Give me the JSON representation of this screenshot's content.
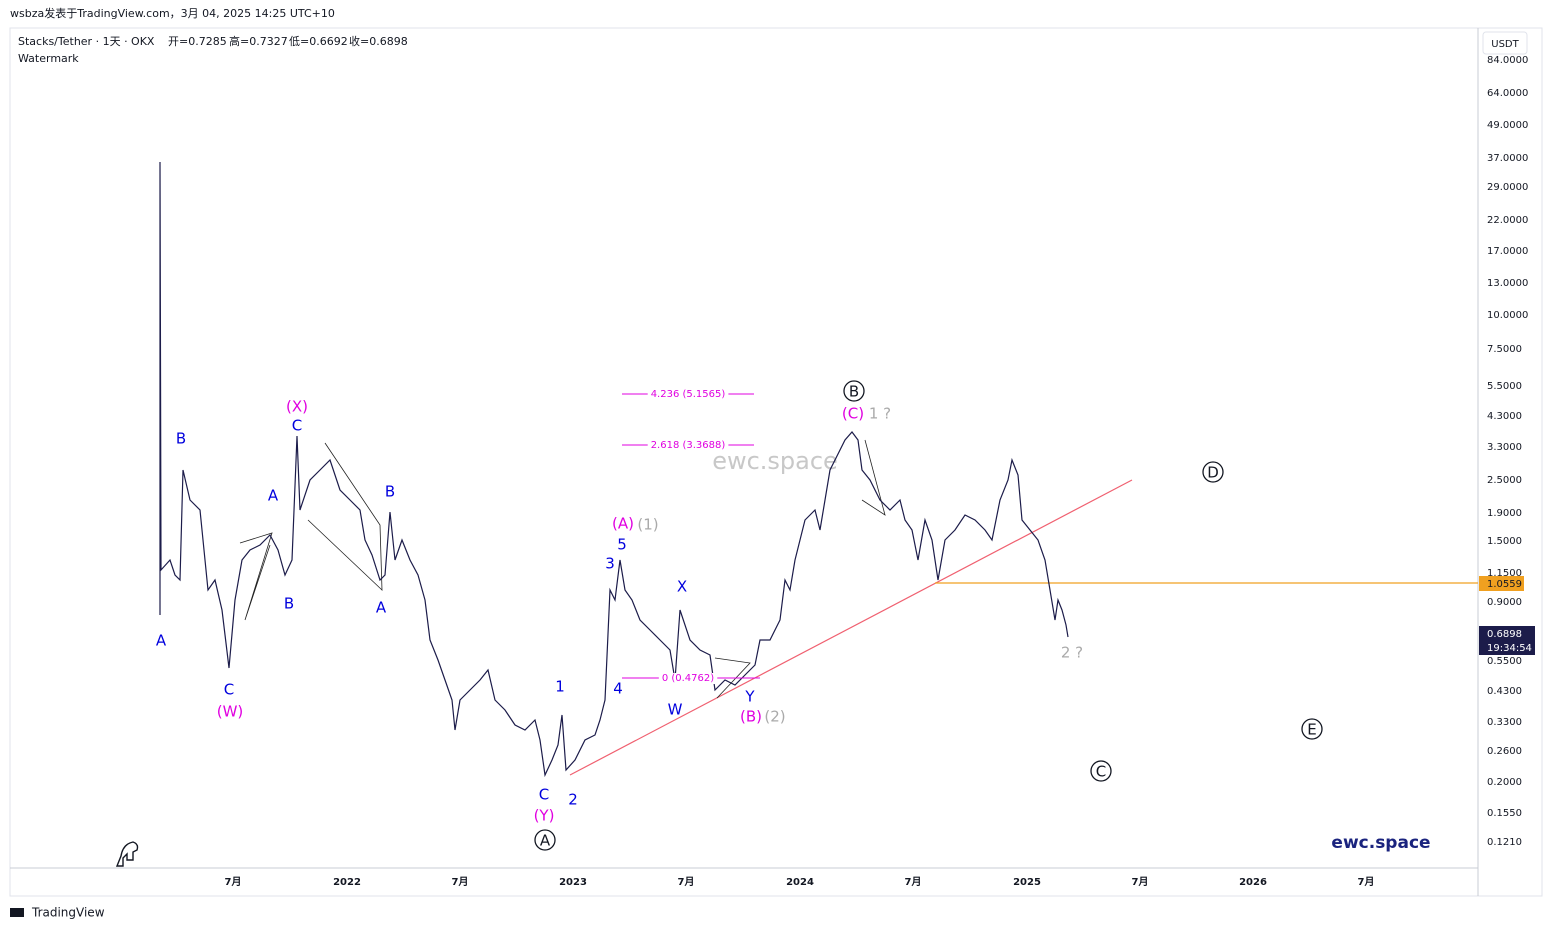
{
  "header": {
    "attribution": "wsbza发表于TradingView.com，3月 04, 2025 14:25 UTC+10",
    "symbol": "Stacks/Tether · 1天 · OKX",
    "ohlc": [
      "开=0.7285",
      "高=0.7327",
      "低=0.6692",
      "收=0.6898"
    ],
    "indicator": "Watermark"
  },
  "price_axis": {
    "currency": "USDT",
    "labels": [
      "84.0000",
      "64.0000",
      "49.0000",
      "37.0000",
      "29.0000",
      "22.0000",
      "17.0000",
      "13.0000",
      "10.0000",
      "7.5000",
      "5.5000",
      "4.3000",
      "3.3000",
      "2.5000",
      "1.9000",
      "1.5000",
      "1.1500",
      "0.9000",
      "0.5500",
      "0.4300",
      "0.3300",
      "0.2600",
      "0.2000",
      "0.1550",
      "0.1210"
    ],
    "level_label": "1.0559",
    "last_price": "0.6898",
    "countdown": "19:34:54"
  },
  "time_axis": [
    "7月",
    "2022",
    "7月",
    "2023",
    "7月",
    "2024",
    "7月",
    "2025",
    "7月",
    "2026",
    "7月"
  ],
  "fib_levels": [
    "4.236 (5.1565)",
    "2.618 (3.3688)",
    "0 (0.4762)"
  ],
  "wave_labels": [
    "A",
    "B",
    "A",
    "B",
    "C",
    "(W)",
    "(X)",
    "C",
    "B",
    "A",
    "C",
    "(Y)",
    "A",
    "1",
    "2",
    "3",
    "4",
    "5",
    "(A)",
    "(1)",
    "X",
    "W",
    "Y",
    "(B)",
    "(2)",
    "B",
    "(C)",
    "1 ?",
    "D",
    "C",
    "E",
    "2 ?"
  ],
  "watermark": "ewc.space",
  "brand": "ewc.space",
  "footer": "TradingView"
}
